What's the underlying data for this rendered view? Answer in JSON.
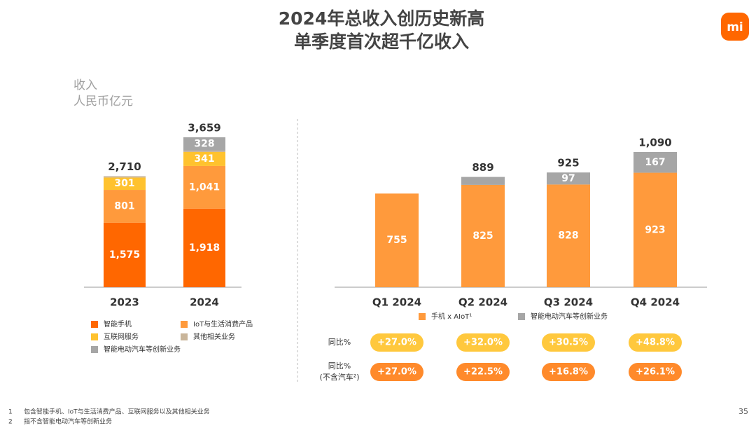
{
  "header": {
    "title": "2024年总收入创历史新高",
    "subtitle": "单季度首次超千亿收入",
    "logo": "mi"
  },
  "unit_label": [
    "收入",
    "人民币亿元"
  ],
  "chart_data": [
    {
      "type": "stacked-bar",
      "categories": [
        "2023",
        "2024"
      ],
      "series": [
        {
          "name": "智能手机",
          "color": "#ff6700",
          "values": [
            1575,
            1918
          ],
          "value_labels": [
            "1,575",
            "1,918"
          ]
        },
        {
          "name": "IoT与生活消费产品",
          "color": "#ff9a3c",
          "values": [
            801,
            1041
          ],
          "value_labels": [
            "801",
            "1,041"
          ]
        },
        {
          "name": "互联网服务",
          "color": "#ffc22e",
          "values": [
            301,
            341
          ]
        },
        {
          "name": "其他相关业务",
          "color": "#c9b59a",
          "values": [
            33,
            31
          ]
        },
        {
          "name": "智能电动汽车等创新业务",
          "color": "#a6a6a6",
          "values": [
            null,
            328
          ]
        }
      ],
      "totals": [
        2710,
        3659
      ],
      "total_labels": [
        "2,710",
        "3,659"
      ]
    },
    {
      "type": "stacked-bar",
      "categories": [
        "Q1 2024",
        "Q2 2024",
        "Q3 2024",
        "Q4 2024"
      ],
      "series": [
        {
          "name": "手机 x AIoT¹",
          "color": "#ff9a3c",
          "values": [
            755,
            825,
            828,
            923
          ]
        },
        {
          "name": "智能电动汽车等创新业务",
          "color": "#a6a6a6",
          "values": [
            null,
            64,
            97,
            167
          ]
        }
      ],
      "totals": [
        null,
        889,
        925,
        1090
      ],
      "total_labels": [
        null,
        "889",
        "925",
        "1,090"
      ]
    }
  ],
  "growth_table": {
    "rows": [
      {
        "label": [
          "同比%"
        ],
        "color": "#ffc83d",
        "cells": [
          "+27.0%",
          "+32.0%",
          "+30.5%",
          "+48.8%"
        ]
      },
      {
        "label": [
          "同比%",
          "(不含汽车²)"
        ],
        "color": "#ff8a2b",
        "cells": [
          "+27.0%",
          "+22.5%",
          "+16.8%",
          "+26.1%"
        ]
      }
    ]
  },
  "footnotes": [
    {
      "num": "1",
      "text": "包含智能手机、IoT与生活消费产品、互联网服务以及其他相关业务"
    },
    {
      "num": "2",
      "text": "指不含智能电动汽车等创新业务"
    }
  ],
  "page_number": "35"
}
